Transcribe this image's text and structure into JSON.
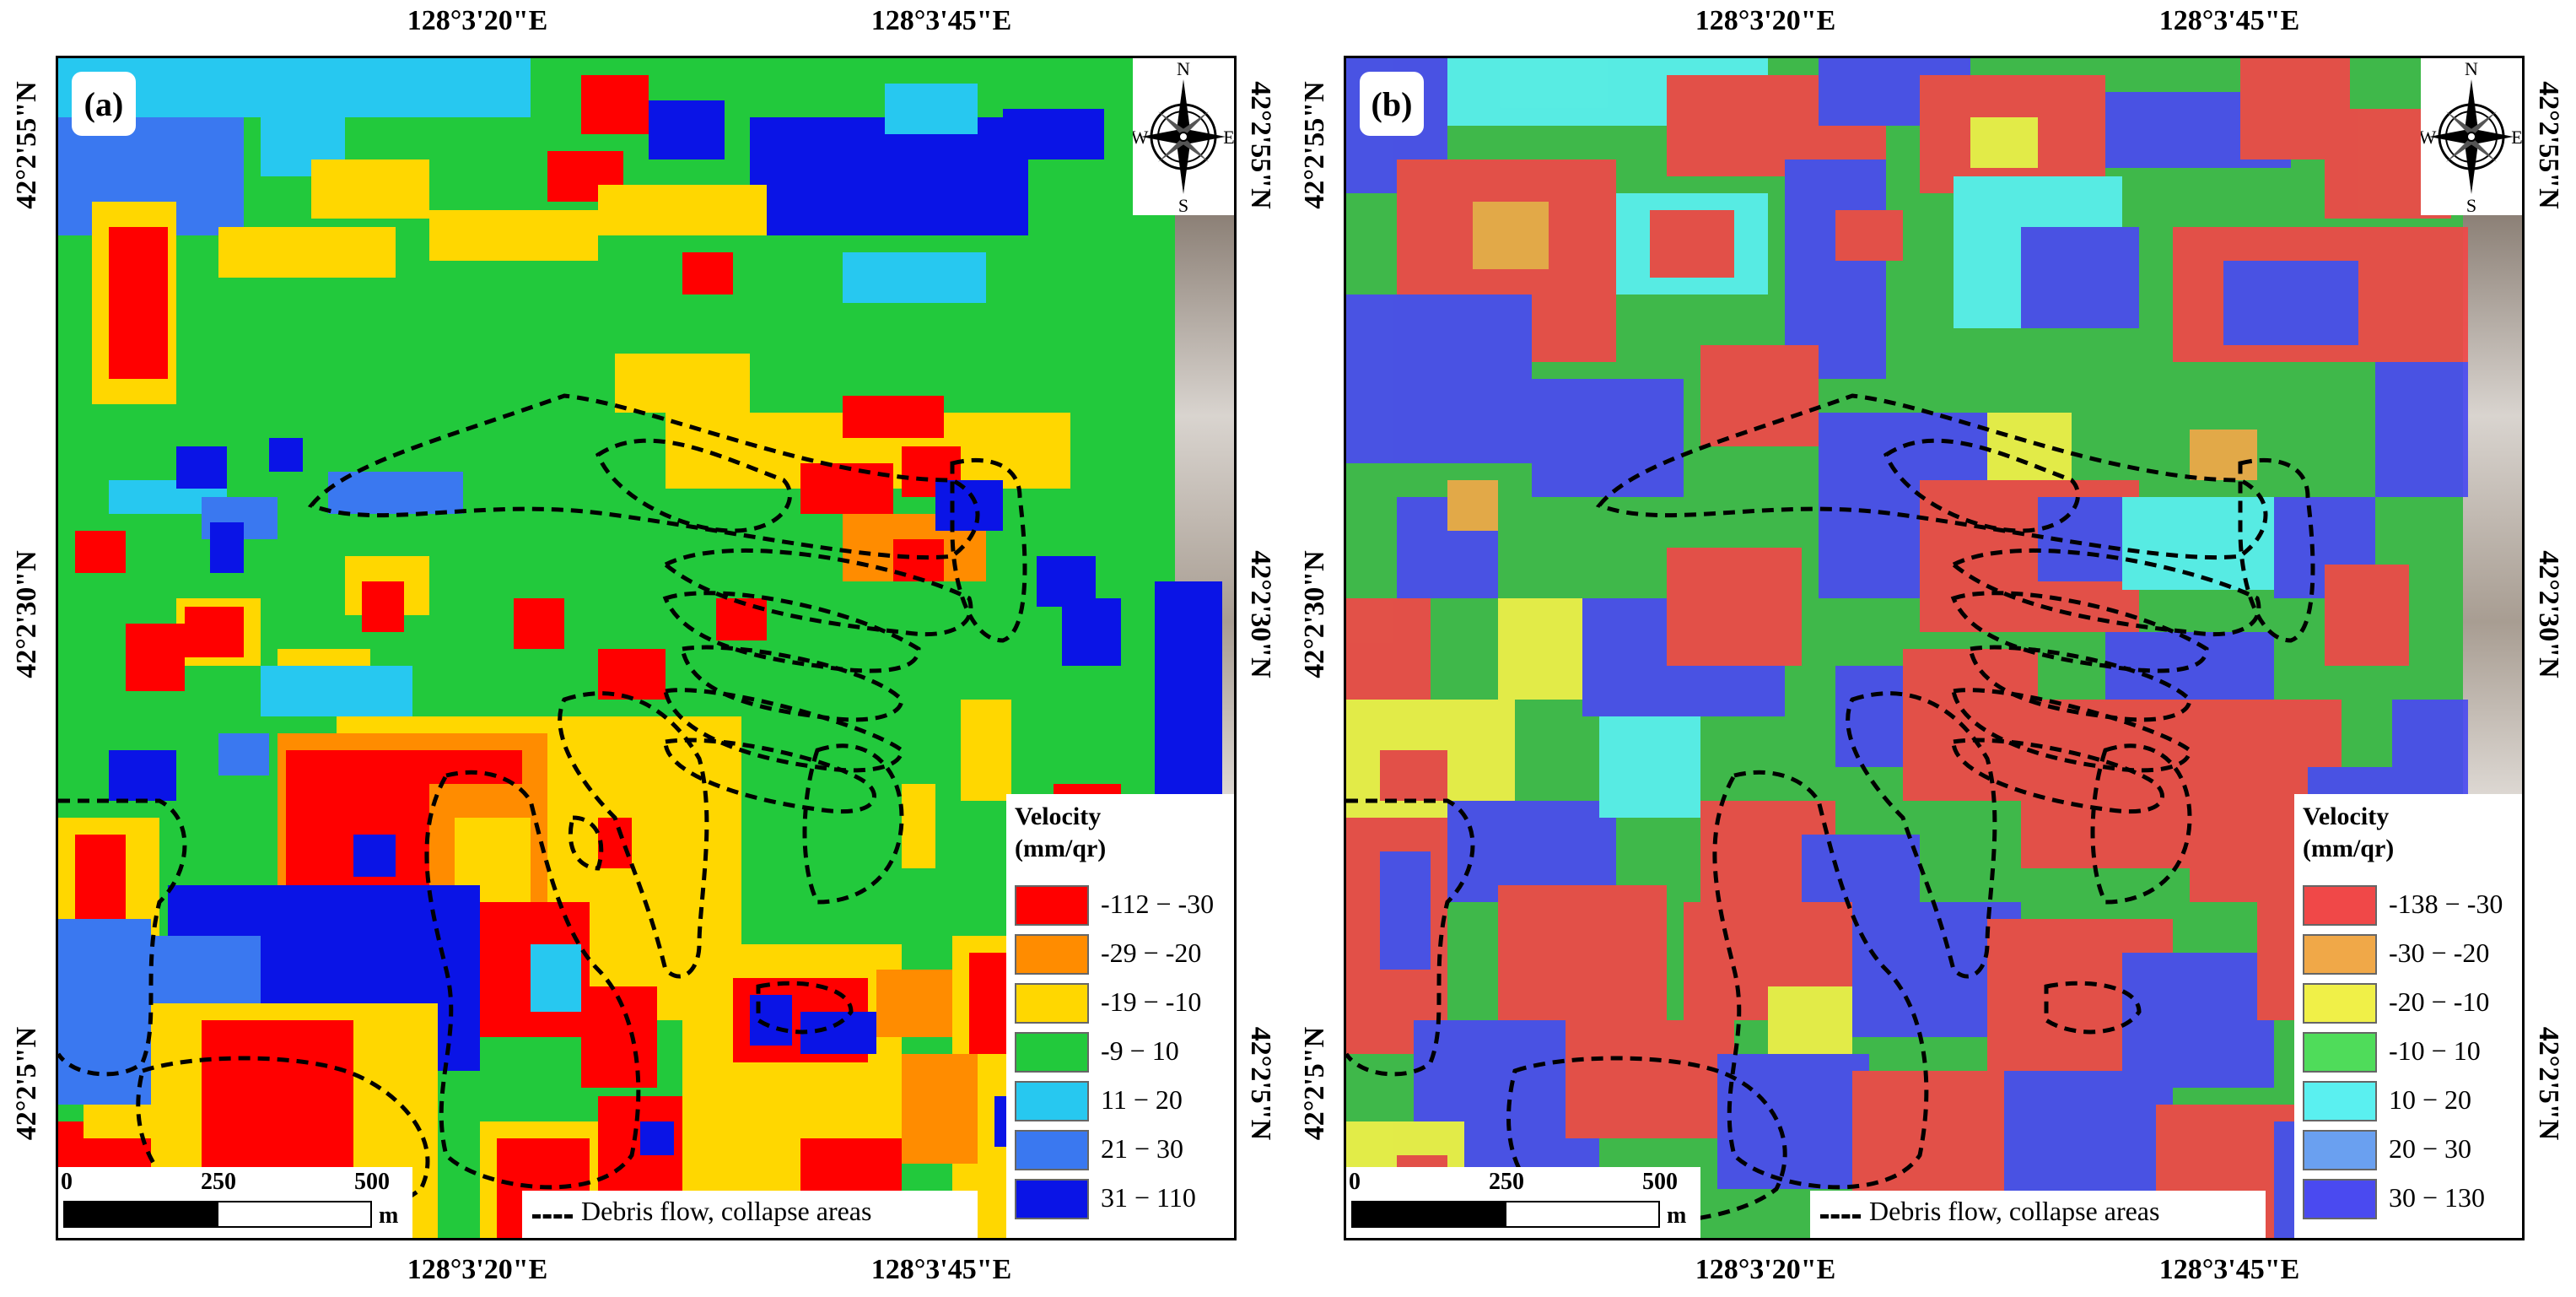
{
  "panels": [
    {
      "label": "(a)",
      "top_ticks": [
        "128°3'20\"E",
        "128°3'45\"E"
      ],
      "bottom_ticks": [
        "128°3'20\"E",
        "128°3'45\"E"
      ],
      "left_ticks": [
        "42°2'55\"N",
        "42°2'30\"N",
        "42°2'5\"N"
      ],
      "right_ticks": [
        "42°2'55\"N",
        "42°2'30\"N",
        "42°2'5\"N"
      ],
      "compass": {
        "n": "N",
        "s": "S",
        "e": "E",
        "w": "W"
      },
      "legend": {
        "title_line1": "Velocity",
        "title_line2": "(mm/qr)",
        "classes": [
          {
            "label": "-112 − -30",
            "color": "#ff0000"
          },
          {
            "label": "-29 − -20",
            "color": "#ff8c00"
          },
          {
            "label": "-19 − -10",
            "color": "#ffd700"
          },
          {
            "label": "-9 − 10",
            "color": "#22c93c"
          },
          {
            "label": "11 − 20",
            "color": "#27c8f0"
          },
          {
            "label": "21 − 30",
            "color": "#3a78f0"
          },
          {
            "label": "31 − 110",
            "color": "#0a14e6"
          }
        ]
      },
      "scale": {
        "ticks": [
          "0",
          "250",
          "500"
        ],
        "unit": "m"
      },
      "debris_label": "Debris flow, collapse areas"
    },
    {
      "label": "(b)",
      "top_ticks": [
        "128°3'20\"E",
        "128°3'45\"E"
      ],
      "bottom_ticks": [
        "128°3'20\"E",
        "128°3'45\"E"
      ],
      "left_ticks": [
        "42°2'55\"N",
        "42°2'30\"N",
        "42°2'5\"N"
      ],
      "right_ticks": [
        "42°2'55\"N",
        "42°2'30\"N",
        "42°2'5\"N"
      ],
      "compass": {
        "n": "N",
        "s": "S",
        "e": "E",
        "w": "W"
      },
      "legend": {
        "title_line1": "Velocity",
        "title_line2": "(mm/qr)",
        "classes": [
          {
            "label": "-138 − -30",
            "color": "#f04848"
          },
          {
            "label": "-30 − -20",
            "color": "#f0a848"
          },
          {
            "label": "-20 − -10",
            "color": "#f0f048"
          },
          {
            "label": "-10 − 10",
            "color": "#4fdc5a"
          },
          {
            "label": "10 − 20",
            "color": "#5af0f0"
          },
          {
            "label": "20 − 30",
            "color": "#6aa0f0"
          },
          {
            "label": "30 − 130",
            "color": "#4a4af0"
          }
        ]
      },
      "scale": {
        "ticks": [
          "0",
          "250",
          "500"
        ],
        "unit": "m"
      },
      "debris_label": "Debris flow, collapse areas"
    }
  ]
}
